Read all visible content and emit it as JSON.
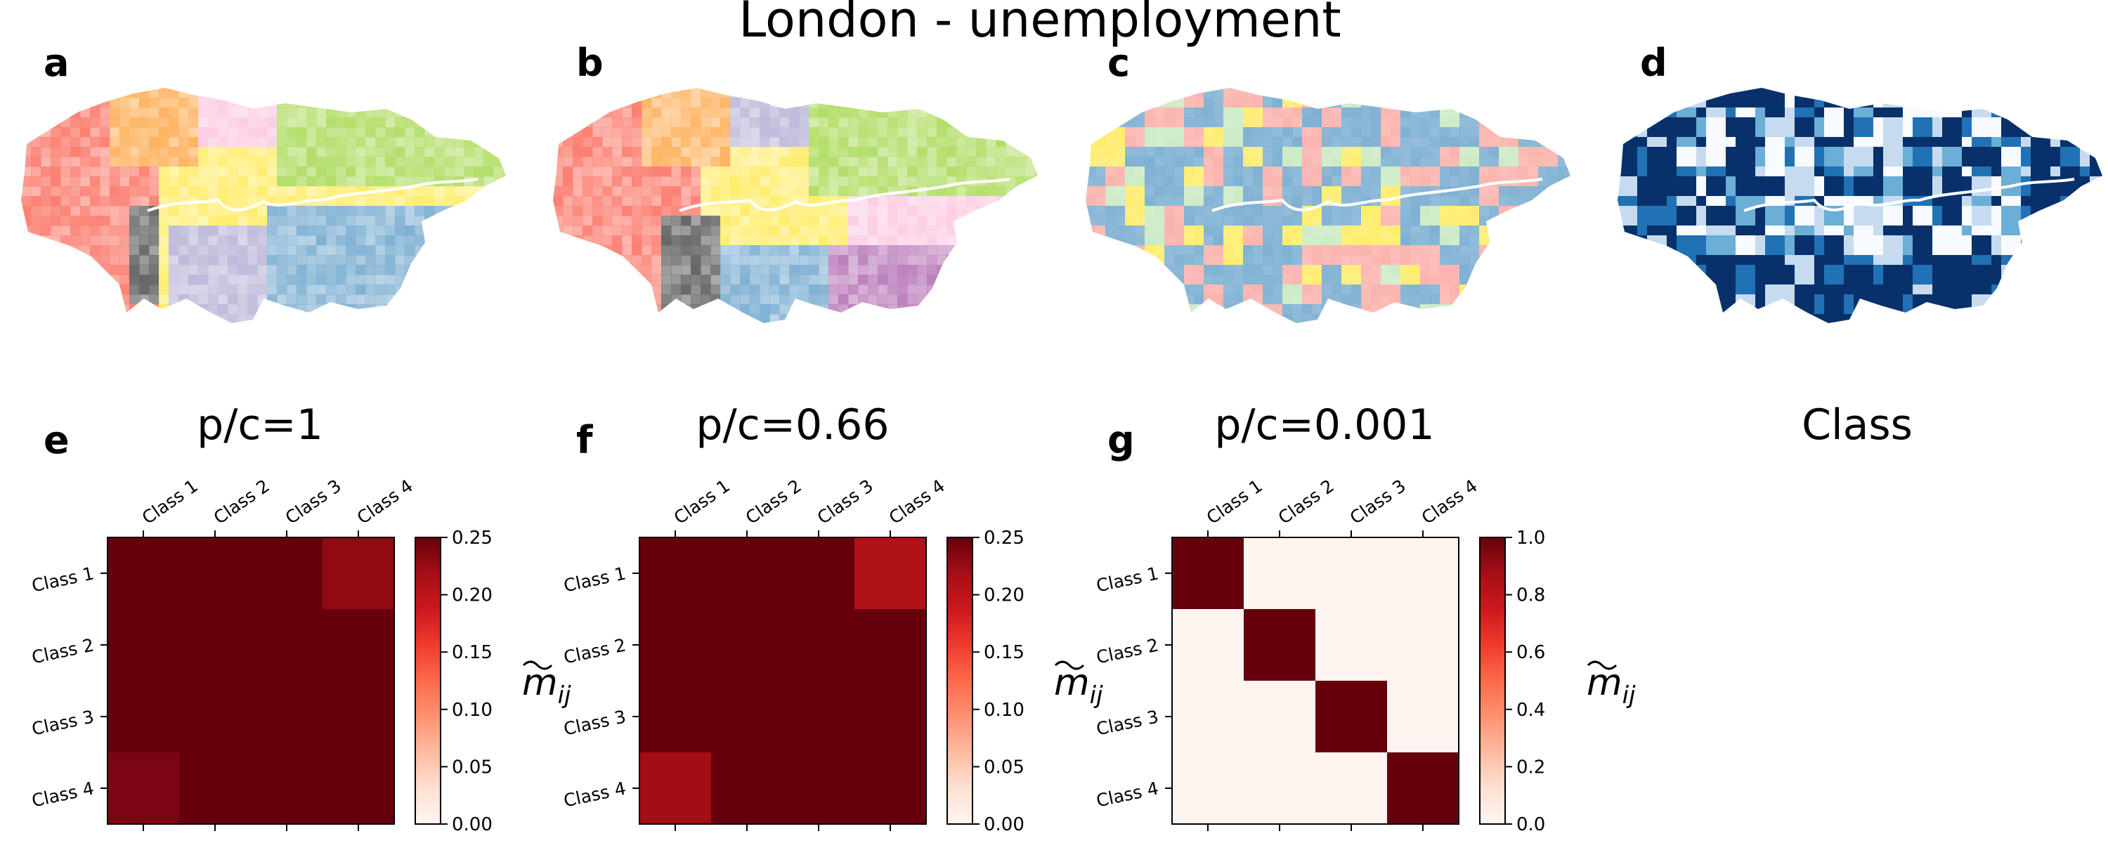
{
  "title": "London - unemployment",
  "panel_letters": {
    "a": "a",
    "b": "b",
    "c": "c",
    "d": "d",
    "e": "e",
    "f": "f",
    "g": "g"
  },
  "map_palette": {
    "qualitative": [
      "#fb8072",
      "#fdb462",
      "#fccde5",
      "#b3de69",
      "#ffed6f",
      "#80b1d3",
      "#bebada",
      "#bc80bd",
      "#666666"
    ],
    "sequential_blues": [
      "#f7fbff",
      "#c6dbef",
      "#6baed6",
      "#2171b5",
      "#08306b"
    ],
    "river": "#ffffff"
  },
  "maps": [
    {
      "id": "a",
      "caption": "p/c=1",
      "scheme": "qualitative",
      "regions": [
        "#fb8072",
        "#fdb462",
        "#fccde5",
        "#b3de69",
        "#ffed6f",
        "#80b1d3",
        "#bebada",
        "#666666"
      ]
    },
    {
      "id": "b",
      "caption": "p/c=0.66",
      "scheme": "qualitative",
      "regions": [
        "#fb8072",
        "#fdb462",
        "#bebada",
        "#b3de69",
        "#ffed6f",
        "#fccde5",
        "#80b1d3",
        "#bc80bd",
        "#666666"
      ]
    },
    {
      "id": "c",
      "caption": "p/c=0.001",
      "scheme": "qualitative-4",
      "regions": [
        "#80b1d3",
        "#fbb4ae",
        "#ffed6f",
        "#ccebc5"
      ]
    },
    {
      "id": "d",
      "caption": "Class",
      "scheme": "sequential_blues",
      "regions": [
        "#08306b",
        "#2171b5",
        "#6baed6",
        "#c6dbef",
        "#f7fbff"
      ]
    }
  ],
  "chart_data": [
    {
      "type": "heatmap",
      "panel": "e",
      "title": "p/c=1",
      "x_categories": [
        "Class 1",
        "Class 2",
        "Class 3",
        "Class 4"
      ],
      "y_categories": [
        "Class 1",
        "Class 2",
        "Class 3",
        "Class 4"
      ],
      "values": [
        [
          0.25,
          0.25,
          0.25,
          0.23
        ],
        [
          0.25,
          0.25,
          0.25,
          0.25
        ],
        [
          0.25,
          0.25,
          0.25,
          0.25
        ],
        [
          0.24,
          0.25,
          0.25,
          0.25
        ]
      ],
      "colorbar": {
        "min": 0,
        "max": 0.25,
        "ticks": [
          "0.00",
          "0.05",
          "0.10",
          "0.15",
          "0.20",
          "0.25"
        ],
        "label": "m̃ij"
      },
      "colormap": "Reds"
    },
    {
      "type": "heatmap",
      "panel": "f",
      "title": "p/c=0.66",
      "x_categories": [
        "Class 1",
        "Class 2",
        "Class 3",
        "Class 4"
      ],
      "y_categories": [
        "Class 1",
        "Class 2",
        "Class 3",
        "Class 4"
      ],
      "values": [
        [
          0.25,
          0.25,
          0.25,
          0.21
        ],
        [
          0.25,
          0.25,
          0.25,
          0.25
        ],
        [
          0.25,
          0.25,
          0.25,
          0.25
        ],
        [
          0.22,
          0.25,
          0.25,
          0.25
        ]
      ],
      "colorbar": {
        "min": 0,
        "max": 0.25,
        "ticks": [
          "0.00",
          "0.05",
          "0.10",
          "0.15",
          "0.20",
          "0.25"
        ],
        "label": "m̃ij"
      },
      "colormap": "Reds"
    },
    {
      "type": "heatmap",
      "panel": "g",
      "title": "p/c=0.001",
      "x_categories": [
        "Class 1",
        "Class 2",
        "Class 3",
        "Class 4"
      ],
      "y_categories": [
        "Class 1",
        "Class 2",
        "Class 3",
        "Class 4"
      ],
      "values": [
        [
          1.0,
          0.0,
          0.0,
          0.0
        ],
        [
          0.0,
          1.0,
          0.0,
          0.0
        ],
        [
          0.0,
          0.0,
          1.0,
          0.0
        ],
        [
          0.0,
          0.0,
          0.0,
          1.0
        ]
      ],
      "colorbar": {
        "min": 0,
        "max": 1.0,
        "ticks": [
          "0.0",
          "0.2",
          "0.4",
          "0.6",
          "0.8",
          "1.0"
        ],
        "label": "m̃ij"
      },
      "colormap": "Reds"
    }
  ],
  "class_caption": "Class"
}
